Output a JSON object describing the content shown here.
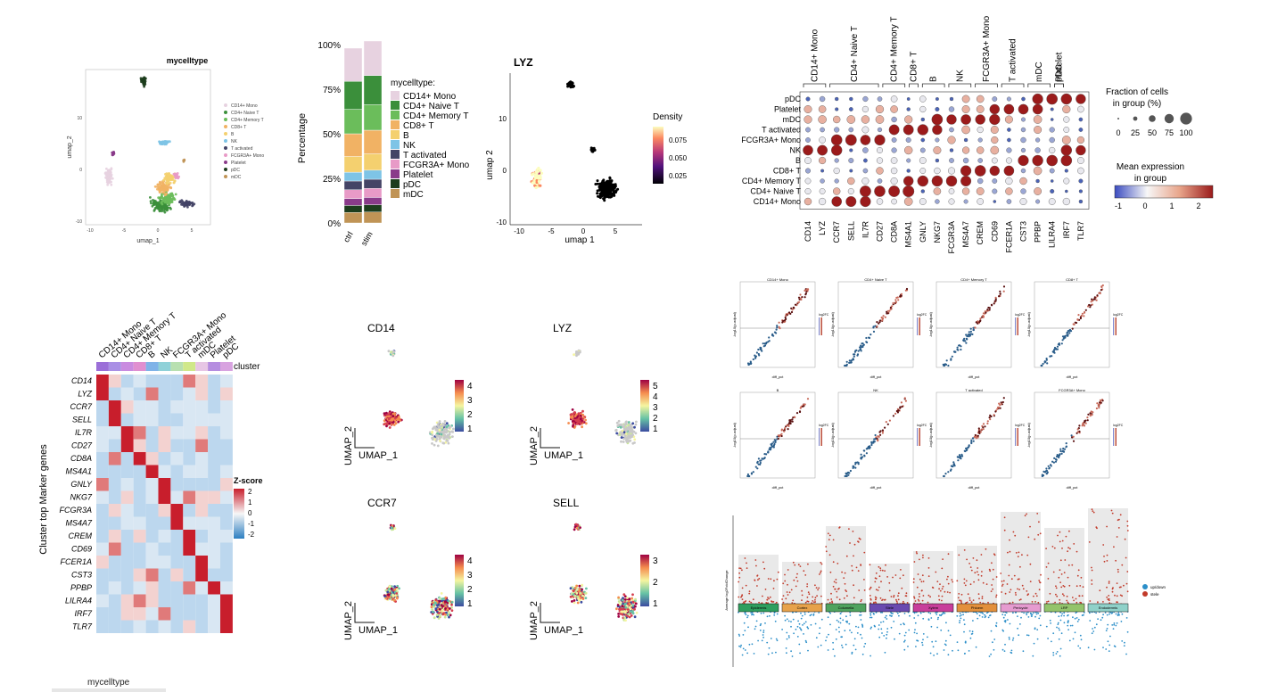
{
  "colors": {
    "celltypes": [
      "#e7d2e0",
      "#3b8f3b",
      "#6bbd5b",
      "#f1b264",
      "#f4d06f",
      "#7ec4e6",
      "#444466",
      "#e89ac7",
      "#8a3b8a",
      "#1d3d1d",
      "#c09456"
    ],
    "low": "#4a63b8",
    "high": "#b5242a"
  },
  "celltypes": [
    "CD14+ Mono",
    "CD4+ Naive T",
    "CD4+ Memory T",
    "CD8+ T",
    "B",
    "NK",
    "T activated",
    "FCGR3A+ Mono",
    "Platelet",
    "pDC",
    "mDC"
  ],
  "umap_celltype": {
    "title": "mycelltype",
    "xlabel": "umap_1",
    "ylabel": "umap_2",
    "xticks": [
      "-10",
      "-5",
      "0",
      "5"
    ],
    "yticks": [
      "10",
      "0",
      "-10"
    ]
  },
  "stacked_bar": {
    "ylabel": "Percentage",
    "yticks": [
      "100%",
      "75%",
      "50%",
      "25%",
      "0%"
    ],
    "categories": [
      "ctrl",
      "stim"
    ],
    "legend_title": "mycelltype:"
  },
  "density_umap": {
    "title": "LYZ",
    "xlabel": "umap 1",
    "ylabel": "umap 2",
    "xticks": [
      "-10",
      "-5",
      "0",
      "5"
    ],
    "yticks": [
      "10",
      "0",
      "-10"
    ],
    "legend_title": "Density",
    "legend_ticks": [
      "0.075",
      "0.050",
      "0.025"
    ]
  },
  "dotplot": {
    "groups": [
      "CD14+ Mono",
      "CD4+ Naive T",
      "CD4+ Memory T",
      "CD8+ T",
      "B",
      "NK",
      "FCGR3A+ Mono",
      "T activated",
      "mDC",
      "Platelet",
      "pDC"
    ],
    "rows": [
      "pDC",
      "Platelet",
      "mDC",
      "T activated",
      "FCGR3A+ Mono",
      "NK",
      "B",
      "CD8+ T",
      "CD4+ Memory T",
      "CD4+ Naive T",
      "CD14+ Mono"
    ],
    "genes": [
      "CD14",
      "LYZ",
      "CCR7",
      "SELL",
      "IL7R",
      "CD27",
      "CD8A",
      "MS4A1",
      "GNLY",
      "NKG7",
      "FCGR3A",
      "MS4A7",
      "CREM",
      "CD69",
      "FCER1A",
      "CST3",
      "PPBP",
      "LILRA4",
      "IRF7",
      "TLR7"
    ],
    "size_title_1": "Fraction of cells",
    "size_title_2": "in group (%)",
    "size_ticks": [
      "0",
      "25",
      "50",
      "75",
      "100"
    ],
    "color_title_1": "Mean expression",
    "color_title_2": "in group",
    "color_ticks": [
      "-1",
      "0",
      "1",
      "2"
    ]
  },
  "heatmap": {
    "columns": [
      "CD14+ Mono",
      "CD4+ Naive T",
      "CD4+ Memory T",
      "CD8+ T",
      "B",
      "NK",
      "FCGR3A+ Mono",
      "T activated",
      "mDC",
      "Platelet",
      "pDC"
    ],
    "annotation_label": "cluster",
    "rows": [
      "CD14",
      "LYZ",
      "CCR7",
      "SELL",
      "IL7R",
      "CD27",
      "CD8A",
      "MS4A1",
      "GNLY",
      "NKG7",
      "FCGR3A",
      "MS4A7",
      "CREM",
      "CD69",
      "FCER1A",
      "CST3",
      "PPBP",
      "LILRA4",
      "IRF7",
      "TLR7"
    ],
    "ylabel": "Cluster top Marker genes",
    "legend_title": "Z-score",
    "legend_ticks": [
      "2",
      "1",
      "0",
      "-1",
      "-2"
    ]
  },
  "feature_plots": [
    {
      "title": "CD14",
      "ticks": [
        "4",
        "3",
        "2",
        "1"
      ]
    },
    {
      "title": "LYZ",
      "ticks": [
        "5",
        "4",
        "3",
        "2",
        "1"
      ]
    },
    {
      "title": "CCR7",
      "ticks": [
        "4",
        "3",
        "2",
        "1"
      ]
    },
    {
      "title": "SELL",
      "ticks": [
        "3",
        "2",
        "1"
      ]
    }
  ],
  "feature_axes": {
    "x": "UMAP_1",
    "y": "UMAP_2"
  },
  "volcano_grid": {
    "titles": [
      "CD14+ Mono",
      "CD4+ Naive T",
      "CD4+ Memory T",
      "CD8+ T",
      "B",
      "NK",
      "T activated",
      "FCGR3A+ Mono"
    ],
    "xlabel": "diff_pct",
    "ylabel": "-log10(p-adjust)",
    "legend": "log2FC"
  },
  "jitter_plot": {
    "ylabel": "Average log2FoldChange",
    "categories": [
      "Epidermis",
      "Cortex",
      "Columella",
      "Stele",
      "Xylem",
      "Phloem",
      "Pericycle",
      "LRP",
      "Endodermis"
    ],
    "legend": [
      "up/down",
      "stele"
    ]
  },
  "footer": {
    "label": "mycelltype"
  }
}
